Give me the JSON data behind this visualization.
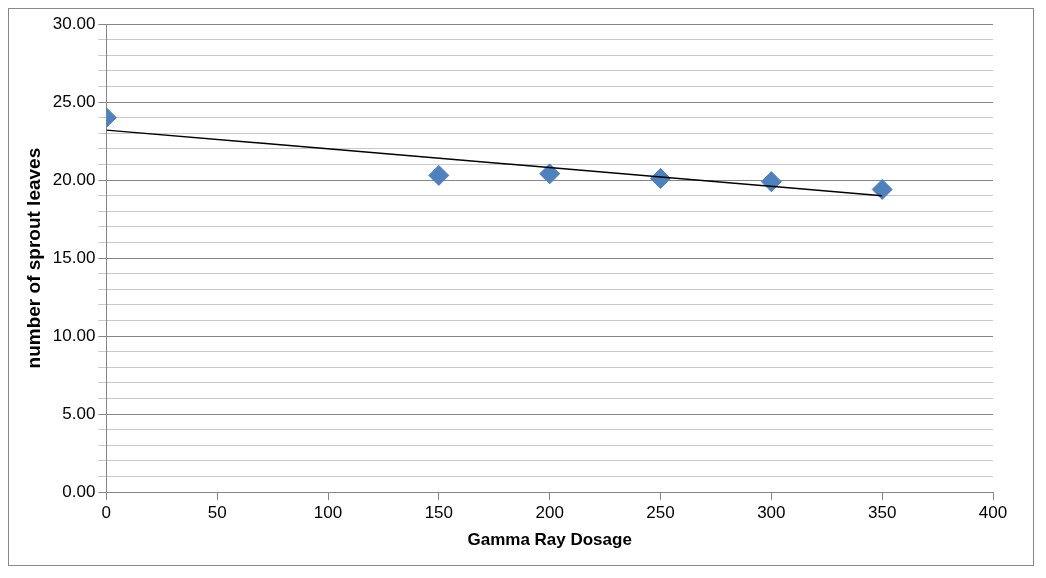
{
  "chart_data": {
    "type": "scatter",
    "xlabel": "Gamma Ray Dosage",
    "ylabel": "number of sprout leaves",
    "grid": "y",
    "legend": false,
    "series": [
      {
        "marker": "diamond",
        "color": "#4f81bd",
        "x": [
          0,
          150,
          200,
          250,
          300,
          350
        ],
        "values": [
          24.0,
          20.3,
          20.4,
          20.1,
          19.9,
          19.4
        ]
      },
      {
        "type": "line",
        "marker": "none",
        "color": "#000000",
        "x": [
          0,
          350
        ],
        "values": [
          23.2,
          19.0
        ]
      }
    ],
    "xlim": [
      0,
      400
    ],
    "xticks": [
      0,
      50,
      100,
      150,
      200,
      250,
      300,
      350,
      400
    ],
    "ylim": [
      0,
      30
    ],
    "yticks": [
      {
        "value": 0,
        "label": "0.00"
      },
      {
        "value": 1,
        "label": null
      },
      {
        "value": 2,
        "label": null
      },
      {
        "value": 3,
        "label": null
      },
      {
        "value": 4,
        "label": null
      },
      {
        "value": 5,
        "label": "5.00"
      },
      {
        "value": 6,
        "label": null
      },
      {
        "value": 7,
        "label": null
      },
      {
        "value": 8,
        "label": null
      },
      {
        "value": 9,
        "label": null
      },
      {
        "value": 10,
        "label": "10.00"
      },
      {
        "value": 11,
        "label": null
      },
      {
        "value": 12,
        "label": null
      },
      {
        "value": 13,
        "label": null
      },
      {
        "value": 14,
        "label": null
      },
      {
        "value": 15,
        "label": "15.00"
      },
      {
        "value": 16,
        "label": null
      },
      {
        "value": 17,
        "label": null
      },
      {
        "value": 18,
        "label": null
      },
      {
        "value": 19,
        "label": null
      },
      {
        "value": 20,
        "label": "20.00"
      },
      {
        "value": 21,
        "label": null
      },
      {
        "value": 22,
        "label": null
      },
      {
        "value": 23,
        "label": null
      },
      {
        "value": 24,
        "label": null
      },
      {
        "value": 25,
        "label": "25.00"
      },
      {
        "value": 26,
        "label": null
      },
      {
        "value": 27,
        "label": null
      },
      {
        "value": 28,
        "label": null
      },
      {
        "value": 29,
        "label": null
      },
      {
        "value": 30,
        "label": "30.00"
      }
    ]
  }
}
